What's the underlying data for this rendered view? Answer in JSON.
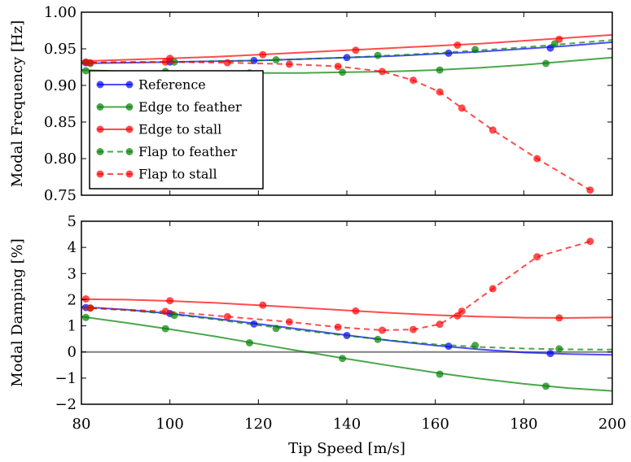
{
  "chart_data": [
    {
      "type": "line",
      "title": "",
      "xlabel": "",
      "ylabel": "Modal Frequency [Hz]",
      "xlim": [
        80,
        200
      ],
      "ylim": [
        0.75,
        1.0
      ],
      "xticks": [
        "80",
        "100",
        "120",
        "140",
        "160",
        "180",
        "200"
      ],
      "yticks": [
        "0.75",
        "0.80",
        "0.85",
        "0.90",
        "0.95",
        "1.00"
      ],
      "xtick_labels_visible": false,
      "grid": false,
      "legend": "middle-left",
      "series": [
        {
          "name": "Reference",
          "color": "#0000ff",
          "dashed": false,
          "x": [
            80,
            90,
            100,
            110,
            120,
            130,
            140,
            150,
            160,
            170,
            180,
            190,
            200
          ],
          "y": [
            0.93,
            0.931,
            0.932,
            0.933,
            0.934,
            0.936,
            0.938,
            0.94,
            0.943,
            0.946,
            0.95,
            0.954,
            0.959
          ],
          "markers_x": [
            81,
            100,
            119,
            140,
            163,
            186
          ],
          "markers_y": [
            0.931,
            0.932,
            0.934,
            0.938,
            0.944,
            0.951
          ]
        },
        {
          "name": "Edge to feather",
          "color": "#008000",
          "dashed": false,
          "x": [
            80,
            90,
            100,
            110,
            120,
            130,
            140,
            150,
            160,
            170,
            180,
            190,
            200
          ],
          "y": [
            0.921,
            0.919,
            0.918,
            0.917,
            0.917,
            0.917,
            0.918,
            0.919,
            0.921,
            0.924,
            0.928,
            0.933,
            0.938
          ],
          "markers_x": [
            81,
            99,
            118,
            139,
            161,
            185
          ],
          "markers_y": [
            0.92,
            0.919,
            0.917,
            0.918,
            0.921,
            0.93
          ]
        },
        {
          "name": "Edge to stall",
          "color": "#ff0000",
          "dashed": false,
          "x": [
            80,
            90,
            100,
            110,
            120,
            130,
            140,
            150,
            160,
            170,
            180,
            190,
            200
          ],
          "y": [
            0.933,
            0.935,
            0.937,
            0.939,
            0.942,
            0.945,
            0.948,
            0.951,
            0.954,
            0.957,
            0.961,
            0.965,
            0.969
          ],
          "markers_x": [
            81,
            100,
            121,
            142,
            165,
            188
          ],
          "markers_y": [
            0.932,
            0.937,
            0.942,
            0.948,
            0.955,
            0.963
          ]
        },
        {
          "name": "Flap to feather",
          "color": "#008000",
          "dashed": true,
          "x": [
            80,
            90,
            100,
            110,
            120,
            130,
            140,
            150,
            160,
            170,
            180,
            190,
            200
          ],
          "y": [
            0.931,
            0.932,
            0.932,
            0.933,
            0.934,
            0.936,
            0.938,
            0.941,
            0.944,
            0.948,
            0.952,
            0.957,
            0.962
          ],
          "markers_x": [
            82,
            101,
            124,
            147,
            169,
            187
          ],
          "markers_y": [
            0.93,
            0.932,
            0.935,
            0.941,
            0.949,
            0.957
          ]
        },
        {
          "name": "Flap to stall",
          "color": "#ff0000",
          "dashed": true,
          "x": [
            80,
            82,
            99,
            113,
            127,
            138,
            148,
            155,
            161,
            166,
            173,
            183,
            195
          ],
          "y": [
            0.93,
            0.931,
            0.932,
            0.931,
            0.929,
            0.926,
            0.919,
            0.907,
            0.891,
            0.869,
            0.839,
            0.8,
            0.757
          ],
          "markers_x": [
            82,
            99,
            113,
            127,
            138,
            148,
            155,
            161,
            166,
            173,
            183,
            195
          ],
          "markers_y": [
            0.931,
            0.932,
            0.931,
            0.929,
            0.926,
            0.919,
            0.907,
            0.891,
            0.869,
            0.839,
            0.8,
            0.757
          ]
        }
      ]
    },
    {
      "type": "line",
      "title": "",
      "xlabel": "Tip Speed [m/s]",
      "ylabel": "Modal Damping [%]",
      "xlim": [
        80,
        200
      ],
      "ylim": [
        -2,
        5
      ],
      "xticks": [
        "80",
        "100",
        "120",
        "140",
        "160",
        "180",
        "200"
      ],
      "yticks": [
        "−2",
        "−1",
        "0",
        "1",
        "2",
        "3",
        "4",
        "5"
      ],
      "grid": false,
      "zero_line": true,
      "series": [
        {
          "name": "Reference",
          "color": "#0000ff",
          "dashed": false,
          "x": [
            80,
            90,
            100,
            110,
            120,
            130,
            140,
            150,
            160,
            170,
            180,
            190,
            200
          ],
          "y": [
            1.72,
            1.62,
            1.47,
            1.28,
            1.07,
            0.86,
            0.64,
            0.43,
            0.25,
            0.1,
            -0.02,
            -0.08,
            -0.11
          ],
          "markers_x": [
            81,
            100,
            119,
            140,
            163,
            186
          ],
          "markers_y": [
            1.7,
            1.47,
            1.07,
            0.63,
            0.22,
            -0.06
          ]
        },
        {
          "name": "Edge to feather",
          "color": "#008000",
          "dashed": false,
          "x": [
            80,
            90,
            100,
            110,
            120,
            130,
            140,
            150,
            160,
            170,
            180,
            190,
            200
          ],
          "y": [
            1.35,
            1.12,
            0.87,
            0.6,
            0.31,
            0.02,
            -0.26,
            -0.53,
            -0.79,
            -1.02,
            -1.22,
            -1.38,
            -1.49
          ],
          "markers_x": [
            81,
            99,
            118,
            139,
            161,
            185
          ],
          "markers_y": [
            1.32,
            0.89,
            0.35,
            -0.25,
            -0.85,
            -1.31
          ]
        },
        {
          "name": "Edge to stall",
          "color": "#ff0000",
          "dashed": false,
          "x": [
            80,
            90,
            100,
            110,
            120,
            130,
            140,
            150,
            160,
            170,
            180,
            190,
            200
          ],
          "y": [
            2.02,
            2.0,
            1.95,
            1.88,
            1.79,
            1.69,
            1.59,
            1.49,
            1.41,
            1.35,
            1.31,
            1.3,
            1.32
          ],
          "markers_x": [
            81,
            100,
            121,
            142,
            165,
            188
          ],
          "markers_y": [
            2.03,
            1.96,
            1.79,
            1.57,
            1.38,
            1.3
          ]
        },
        {
          "name": "Flap to feather",
          "color": "#008000",
          "dashed": true,
          "x": [
            80,
            90,
            100,
            110,
            120,
            130,
            140,
            150,
            160,
            170,
            180,
            190,
            200
          ],
          "y": [
            1.7,
            1.6,
            1.45,
            1.25,
            1.02,
            0.82,
            0.62,
            0.44,
            0.29,
            0.19,
            0.13,
            0.1,
            0.09
          ],
          "markers_x": [
            82,
            101,
            124,
            147,
            169,
            188
          ],
          "markers_y": [
            1.68,
            1.4,
            0.9,
            0.48,
            0.25,
            0.12
          ]
        },
        {
          "name": "Flap to stall",
          "color": "#ff0000",
          "dashed": true,
          "x": [
            80,
            82,
            99,
            113,
            127,
            138,
            148,
            155,
            161,
            166,
            173,
            183,
            195
          ],
          "y": [
            1.7,
            1.68,
            1.55,
            1.35,
            1.15,
            0.95,
            0.83,
            0.86,
            1.06,
            1.56,
            2.42,
            3.64,
            4.23
          ],
          "markers_x": [
            82,
            99,
            113,
            127,
            138,
            148,
            155,
            161,
            166,
            173,
            183,
            195
          ],
          "markers_y": [
            1.68,
            1.55,
            1.35,
            1.15,
            0.95,
            0.83,
            0.86,
            1.06,
            1.56,
            2.42,
            3.64,
            4.23
          ]
        }
      ]
    }
  ]
}
